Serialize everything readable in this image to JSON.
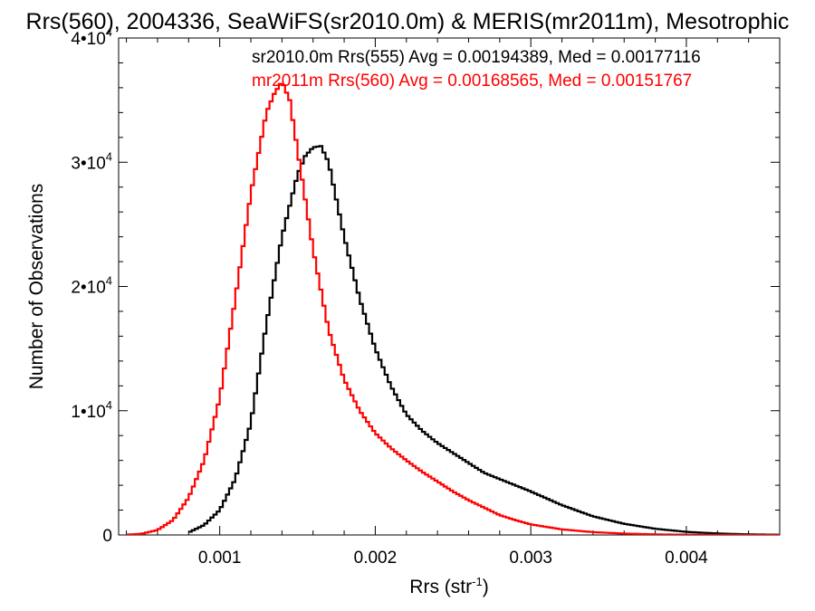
{
  "chart_data": {
    "type": "line",
    "title": "Rrs(560), 2004336, SeaWiFS(sr2010.0m) & MERIS(mr2011m), Mesotrophic",
    "xlabel": "Rrs (str",
    "xlabel_sup": "-1",
    "xlabel_close": ")",
    "ylabel": "Number of Observations",
    "xlim": [
      0.00035,
      0.0046
    ],
    "ylim": [
      0,
      40000
    ],
    "xticks": [
      {
        "value": 0.001,
        "label": "0.001"
      },
      {
        "value": 0.002,
        "label": "0.002"
      },
      {
        "value": 0.003,
        "label": "0.003"
      },
      {
        "value": 0.004,
        "label": "0.004"
      }
    ],
    "yticks": [
      {
        "value": 0,
        "label": "0",
        "sup": ""
      },
      {
        "value": 10000,
        "label": "1•10",
        "sup": "4"
      },
      {
        "value": 20000,
        "label": "2•10",
        "sup": "4"
      },
      {
        "value": 30000,
        "label": "3•10",
        "sup": "4"
      },
      {
        "value": 40000,
        "label": "4•10",
        "sup": "4"
      }
    ],
    "series": [
      {
        "name": "sr2010.0m Rrs(555) Avg = 0.00194389, Med = 0.00177116",
        "color": "#000000",
        "x": [
          0.0008,
          0.0009,
          0.001,
          0.0011,
          0.0012,
          0.0013,
          0.0014,
          0.0015,
          0.00155,
          0.0016,
          0.00165,
          0.0017,
          0.00175,
          0.0018,
          0.0019,
          0.002,
          0.0021,
          0.0022,
          0.0023,
          0.0024,
          0.0025,
          0.0026,
          0.0027,
          0.0028,
          0.0029,
          0.003,
          0.0032,
          0.0034,
          0.0036,
          0.0038,
          0.004,
          0.0042,
          0.0044,
          0.0046
        ],
        "y": [
          200,
          800,
          2000,
          4500,
          9000,
          17000,
          24000,
          29000,
          30500,
          31200,
          31300,
          30000,
          27000,
          24000,
          19000,
          15000,
          12000,
          9700,
          8400,
          7400,
          6600,
          5800,
          5000,
          4500,
          4000,
          3500,
          2400,
          1500,
          900,
          500,
          250,
          120,
          50,
          20
        ]
      },
      {
        "name": "mr2011m Rrs(560) Avg = 0.00168565, Med = 0.00151767",
        "color": "#ff0000",
        "x": [
          0.0004,
          0.0005,
          0.0006,
          0.0007,
          0.0008,
          0.0009,
          0.001,
          0.0011,
          0.0012,
          0.0013,
          0.00135,
          0.0014,
          0.00145,
          0.0015,
          0.0016,
          0.0017,
          0.0018,
          0.0019,
          0.002,
          0.0021,
          0.0022,
          0.0023,
          0.0024,
          0.0025,
          0.0026,
          0.0027,
          0.0028,
          0.0029,
          0.003,
          0.0032,
          0.0034,
          0.0036,
          0.0038,
          0.004,
          0.0042,
          0.0044,
          0.0046
        ],
        "y": [
          20,
          100,
          400,
          1200,
          3000,
          6000,
          11000,
          19000,
          27500,
          34000,
          35500,
          36500,
          35000,
          31000,
          23000,
          16500,
          12500,
          10000,
          8200,
          7000,
          6000,
          5100,
          4300,
          3500,
          2800,
          2200,
          1600,
          1200,
          850,
          450,
          230,
          110,
          50,
          20,
          10,
          5,
          0
        ]
      }
    ],
    "grid": false,
    "legend_position": "top-right"
  }
}
